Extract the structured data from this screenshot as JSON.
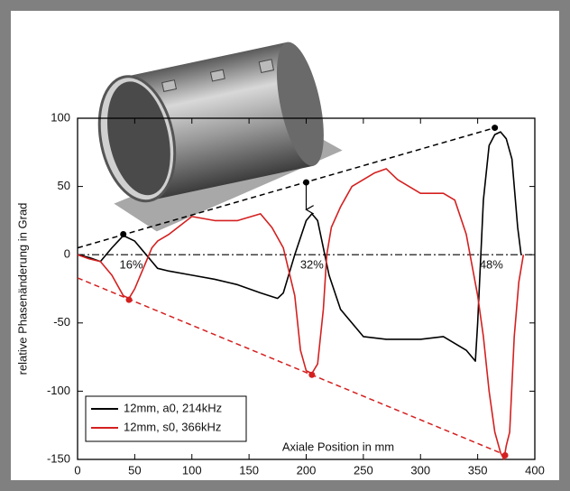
{
  "chart_data": {
    "type": "line",
    "xlabel": "Axiale Position in mm",
    "ylabel": "relative Phasenänderung in Grad",
    "xlim": [
      0,
      400
    ],
    "ylim": [
      -150,
      100
    ],
    "xticks": [
      0,
      50,
      100,
      150,
      200,
      250,
      300,
      350,
      400
    ],
    "yticks": [
      -150,
      -100,
      -50,
      0,
      50,
      100
    ],
    "legend": "lower left",
    "series": [
      {
        "name": "12mm, a0, 214kHz",
        "color": "#000000",
        "x": [
          0,
          10,
          20,
          30,
          40,
          50,
          60,
          65,
          70,
          80,
          100,
          120,
          140,
          160,
          175,
          180,
          190,
          200,
          205,
          210,
          220,
          230,
          250,
          270,
          300,
          320,
          340,
          348,
          350,
          355,
          360,
          365,
          370,
          375,
          380,
          385,
          388
        ],
        "values": [
          0,
          -2,
          -5,
          5,
          14,
          10,
          0,
          -5,
          -10,
          -12,
          -15,
          -18,
          -22,
          -28,
          -32,
          -28,
          0,
          25,
          30,
          25,
          -15,
          -40,
          -60,
          -62,
          -62,
          -60,
          -70,
          -78,
          -50,
          40,
          80,
          88,
          90,
          85,
          70,
          20,
          0
        ]
      },
      {
        "name": "12mm, s0, 366kHz",
        "color": "#d42020",
        "x": [
          0,
          10,
          20,
          30,
          40,
          45,
          50,
          60,
          65,
          70,
          80,
          100,
          120,
          140,
          160,
          170,
          180,
          190,
          195,
          200,
          205,
          210,
          215,
          218,
          222,
          230,
          240,
          260,
          270,
          280,
          300,
          320,
          330,
          340,
          350,
          355,
          360,
          365,
          370,
          373,
          375,
          378,
          382,
          386,
          390
        ],
        "values": [
          0,
          -3,
          -5,
          -15,
          -30,
          -32,
          -25,
          -5,
          5,
          10,
          15,
          28,
          25,
          25,
          30,
          20,
          5,
          -30,
          -70,
          -85,
          -87,
          -80,
          -40,
          0,
          20,
          35,
          50,
          60,
          63,
          55,
          45,
          45,
          40,
          15,
          -30,
          -60,
          -100,
          -130,
          -145,
          -150,
          -140,
          -130,
          -60,
          -20,
          0
        ]
      }
    ],
    "reference_lines": [
      {
        "x": [
          0,
          365
        ],
        "y": [
          5,
          93
        ],
        "color": "#000000"
      },
      {
        "x": [
          0,
          375
        ],
        "y": [
          -17,
          -147
        ],
        "color": "#d42020"
      }
    ],
    "zero_line": 0,
    "markers": [
      {
        "x": 40,
        "y": 15,
        "color": "#000000"
      },
      {
        "x": 200,
        "y": 53,
        "color": "#000000"
      },
      {
        "x": 365,
        "y": 93,
        "color": "#000000"
      },
      {
        "x": 45,
        "y": -33,
        "color": "#d42020"
      },
      {
        "x": 205,
        "y": -88,
        "color": "#d42020"
      },
      {
        "x": 374,
        "y": -147,
        "color": "#d42020"
      }
    ],
    "arrow": {
      "x": 200,
      "y": [
        53,
        33
      ]
    },
    "annotations": [
      {
        "text": "16%",
        "x": 47,
        "y": -8
      },
      {
        "text": "32%",
        "x": 205,
        "y": -8
      },
      {
        "text": "48%",
        "x": 362,
        "y": -8
      }
    ]
  }
}
